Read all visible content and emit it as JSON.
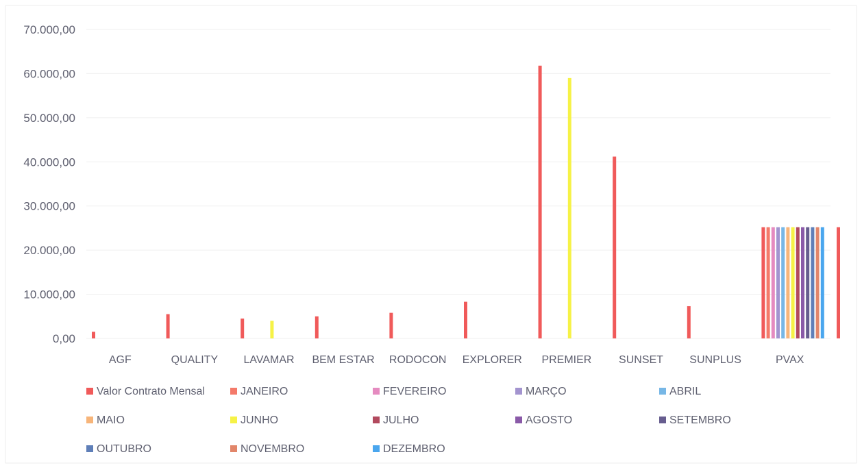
{
  "chart_data": {
    "type": "bar",
    "title": "",
    "xlabel": "",
    "ylabel": "",
    "ylim": [
      0,
      70000
    ],
    "ytick_values": [
      0,
      10000,
      20000,
      30000,
      40000,
      50000,
      60000,
      70000
    ],
    "yticks": [
      "0,00",
      "10.000,00",
      "20.000,00",
      "30.000,00",
      "40.000,00",
      "50.000,00",
      "60.000,00",
      "70.000,00"
    ],
    "grid": true,
    "legend_position": "bottom",
    "categories": [
      "AGF",
      "QUALITY",
      "LAVAMAR",
      "BEM ESTAR",
      "RODOCON",
      "EXPLORER",
      "PREMIER",
      "SUNSET",
      "SUNPLUS",
      "PVAX"
    ],
    "series": [
      {
        "name": "Valor Contrato Mensal",
        "color": "#f05a5a",
        "values": [
          1500,
          5500,
          4500,
          5000,
          5800,
          8300,
          61800,
          41200,
          7300,
          25200
        ]
      },
      {
        "name": "JANEIRO",
        "color": "#f47a6a",
        "values": [
          null,
          null,
          null,
          null,
          null,
          null,
          null,
          null,
          null,
          25200
        ]
      },
      {
        "name": "FEVEREIRO",
        "color": "#e58bc0",
        "values": [
          null,
          null,
          null,
          null,
          null,
          null,
          null,
          null,
          null,
          25200
        ]
      },
      {
        "name": "MARÇO",
        "color": "#a394cf",
        "values": [
          null,
          null,
          null,
          null,
          null,
          null,
          null,
          null,
          null,
          25200
        ]
      },
      {
        "name": "ABRIL",
        "color": "#77b7e6",
        "values": [
          null,
          null,
          null,
          null,
          null,
          null,
          null,
          null,
          null,
          25200
        ]
      },
      {
        "name": "MAIO",
        "color": "#f7b57a",
        "values": [
          null,
          null,
          null,
          null,
          null,
          null,
          null,
          null,
          null,
          25200
        ]
      },
      {
        "name": "JUNHO",
        "color": "#f6f246",
        "values": [
          null,
          null,
          4000,
          null,
          null,
          null,
          59000,
          null,
          null,
          25200
        ]
      },
      {
        "name": "JULHO",
        "color": "#b24a5e",
        "values": [
          null,
          null,
          null,
          null,
          null,
          null,
          null,
          null,
          null,
          25200
        ]
      },
      {
        "name": "AGOSTO",
        "color": "#8a5aa8",
        "values": [
          null,
          null,
          null,
          null,
          null,
          null,
          null,
          null,
          null,
          25200
        ]
      },
      {
        "name": "SETEMBRO",
        "color": "#675d8f",
        "values": [
          null,
          null,
          null,
          null,
          null,
          null,
          null,
          null,
          null,
          25200
        ]
      },
      {
        "name": "OUTUBRO",
        "color": "#5f7fb8",
        "values": [
          null,
          null,
          null,
          null,
          null,
          null,
          null,
          null,
          null,
          25200
        ]
      },
      {
        "name": "NOVEMBRO",
        "color": "#e2866a",
        "values": [
          null,
          null,
          null,
          null,
          null,
          null,
          null,
          null,
          null,
          25200
        ]
      },
      {
        "name": "DEZEMBRO",
        "color": "#4aa6ee",
        "values": [
          null,
          null,
          null,
          null,
          null,
          null,
          null,
          null,
          null,
          25200
        ]
      }
    ]
  }
}
